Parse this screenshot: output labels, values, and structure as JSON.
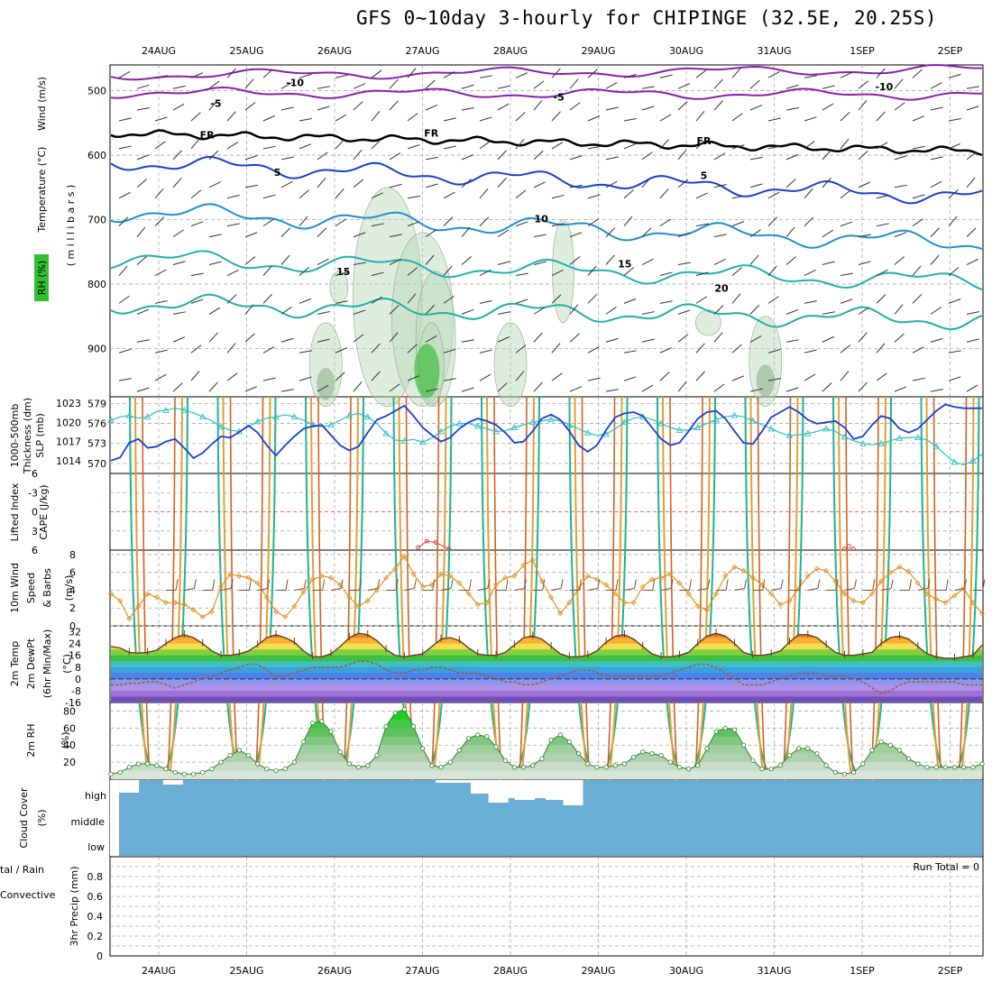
{
  "title": "GFS 0~10day 3-hourly for CHIPINGE (32.5E, 20.25S)",
  "dates": [
    "24AUG",
    "25AUG",
    "26AUG",
    "27AUG",
    "28AUG",
    "29AUG",
    "30AUG",
    "31AUG",
    "1SEP",
    "2SEP"
  ],
  "colors": {
    "wind": "#000000",
    "temperature": "#e06040",
    "rh": "#30c030",
    "thickness": "#30c0c0",
    "slp": "#1a3fd0",
    "lifted": "#e04040",
    "cape": "#d070d0",
    "wind10": "#e09020",
    "temp2m": "#c06030",
    "rh2m": "#30b030",
    "cloud": "#6aaed6",
    "precip": "#30c030",
    "convective": "#e03030"
  },
  "panel_labels": {
    "upper": {
      "wind": "Wind (m/s)",
      "temperature": "Temperature (°C)",
      "rh": "RH (%)",
      "mb": "( m i l l i b a r s )"
    },
    "thickness": {
      "a": "1000-500mb",
      "b": "Thickness (dm)",
      "slp": "SLP (mb)"
    },
    "stability": {
      "li": "Lifted Index",
      "cape": "CAPE (J/kg)"
    },
    "wind10": {
      "a": "10m Wind",
      "b": "Speed",
      "c": "& Barbs",
      "unit": "(m/s)"
    },
    "temp2m": {
      "a": "2m Temp",
      "b": "2m DewPt",
      "c": "(6hr Min/Max)",
      "unit": "(°C)"
    },
    "rh2m": {
      "a": "2m RH",
      "unit": "(%)"
    },
    "cloud": {
      "a": "Cloud Cover",
      "unit": "(%)",
      "high": "high",
      "middle": "middle",
      "low": "low"
    },
    "precip": {
      "a": "tal / Rain",
      "b": "Convective",
      "c": "3hr Precip (mm)",
      "run_total": "Run Total = 0"
    }
  },
  "chart_data": [
    {
      "type": "contour",
      "name": "upper-air",
      "ylabel": "( m i l l i b a r s )",
      "yticks": [
        500,
        600,
        700,
        800,
        900
      ],
      "ylim": [
        460,
        975
      ],
      "contour_labels": [
        {
          "text": "-10",
          "day": 1.55,
          "p": 486,
          "color": "#8a20b0"
        },
        {
          "text": "-10",
          "day": 8.25,
          "p": 492,
          "color": "#8a20b0"
        },
        {
          "text": "-5",
          "day": 0.65,
          "p": 518,
          "color": "#8a20b0"
        },
        {
          "text": "-5",
          "day": 4.55,
          "p": 508,
          "color": "#8a20b0"
        },
        {
          "text": "FR",
          "day": 0.55,
          "p": 567,
          "color": "#000000"
        },
        {
          "text": "FR",
          "day": 3.1,
          "p": 564,
          "color": "#000000"
        },
        {
          "text": "FR",
          "day": 6.2,
          "p": 576,
          "color": "#000000"
        },
        {
          "text": "5",
          "day": 1.35,
          "p": 625,
          "color": "#1a3fd0"
        },
        {
          "text": "5",
          "day": 6.2,
          "p": 630,
          "color": "#1a3fd0"
        },
        {
          "text": "10",
          "day": 4.35,
          "p": 697,
          "color": "#2090d0"
        },
        {
          "text": "15",
          "day": 2.1,
          "p": 779,
          "color": "#20b0b0"
        },
        {
          "text": "15",
          "day": 5.3,
          "p": 767,
          "color": "#20b0b0"
        },
        {
          "text": "20",
          "day": 6.4,
          "p": 805,
          "color": "#20b0b0"
        }
      ]
    },
    {
      "type": "line",
      "name": "thickness-slp",
      "yticks_left": [
        579,
        576,
        573,
        570
      ],
      "yticks_right": [
        1023,
        1020,
        1017,
        1014
      ],
      "series": [
        {
          "name": "1000-500mb Thickness",
          "values": [
            576.5,
            577,
            577.2,
            576.8,
            577,
            577.8,
            578,
            578.3,
            578,
            577.6,
            577,
            576.4,
            575.5,
            575,
            574.8,
            575.5,
            576.3,
            576.8,
            577,
            577.3,
            577,
            576.5,
            575.8,
            575.5,
            575.8,
            576.5,
            577.2,
            577.5,
            577,
            576,
            574.5,
            573.5,
            573.4,
            573.6,
            573.2,
            573.8,
            574.8,
            575.6,
            576,
            576,
            575.6,
            575.2,
            574.8,
            574.9,
            575.4,
            575.8,
            576.2,
            576.4,
            576.6,
            576.4,
            575.8,
            575.2,
            574.6,
            574.2,
            574.4,
            575.2,
            576.2,
            576.8,
            577,
            576.6,
            576,
            575.4,
            575,
            575,
            575.4,
            576,
            576.6,
            577,
            577.2,
            577,
            576.4,
            575.8,
            575.2,
            574.6,
            574.2,
            574.3,
            574.5,
            574.8,
            575.2,
            574.8,
            574,
            573.4,
            573,
            572.8,
            573,
            573.4,
            573.8,
            573.9,
            573.9,
            573.5,
            572.6,
            571.3,
            570.2,
            569.8,
            570.4,
            571.4
          ]
        },
        {
          "name": "SLP",
          "values": [
            1014,
            1014.5,
            1016.8,
            1017.4,
            1016,
            1016.2,
            1017,
            1017.4,
            1016,
            1014.4,
            1015.2,
            1016.6,
            1017.8,
            1017.6,
            1018.5,
            1019.5,
            1018.4,
            1016.4,
            1014.8,
            1016.4,
            1017.8,
            1019,
            1019.4,
            1019.6,
            1018,
            1016.4,
            1015.6,
            1016.2,
            1018.4,
            1020.4,
            1021,
            1021.8,
            1022.6,
            1021,
            1019.2,
            1018,
            1017,
            1017.6,
            1019,
            1020,
            1020.6,
            1020.2,
            1019.6,
            1018.4,
            1016.8,
            1017,
            1018.6,
            1020.6,
            1021.2,
            1020.4,
            1018.6,
            1016.4,
            1015.4,
            1016.4,
            1018.8,
            1020.8,
            1021.4,
            1021.6,
            1021,
            1019.2,
            1017.4,
            1016.4,
            1016.8,
            1018.6,
            1020.6,
            1021.6,
            1021.8,
            1020.6,
            1018.6,
            1016.8,
            1016.6,
            1018.6,
            1020.8,
            1021.6,
            1022.4,
            1021.6,
            1020.4,
            1019.8,
            1020,
            1020.2,
            1019.2,
            1017.4,
            1017.8,
            1019.6,
            1021,
            1020.6,
            1019,
            1018.4,
            1019,
            1020.4,
            1021.8,
            1022.8,
            1022.4,
            1022.2,
            1022.2,
            1022.2
          ]
        }
      ]
    },
    {
      "type": "line",
      "name": "lifted-index-cape",
      "yticks": [
        -6,
        -3,
        0,
        3,
        6
      ],
      "series": [
        {
          "name": "Lifted Index",
          "points": [
            [
              2.95,
              5.6
            ],
            [
              3.05,
              4.6
            ],
            [
              3.15,
              4.8
            ],
            [
              3.3,
              5.8
            ],
            [
              7.8,
              5.8
            ],
            [
              7.85,
              5.4
            ],
            [
              7.9,
              5.8
            ]
          ]
        }
      ]
    },
    {
      "type": "line",
      "name": "wind10m",
      "yticks": [
        0,
        2,
        4,
        6,
        8
      ],
      "ylim": [
        0,
        8.5
      ],
      "series": [
        {
          "name": "10m Wind Speed",
          "values": [
            3.6,
            2.8,
            0.8,
            2.2,
            3.6,
            3.2,
            2.6,
            2.6,
            2.4,
            1.8,
            1,
            1.6,
            4.4,
            5.8,
            5.6,
            5.4,
            4.8,
            3.2,
            1.6,
            1,
            2.2,
            3.8,
            5.2,
            5.6,
            5.4,
            4.6,
            3.2,
            2.2,
            2.8,
            4,
            5.4,
            6.4,
            7.8,
            5.8,
            4.4,
            4.6,
            5.8,
            5.6,
            4.8,
            3.6,
            2.4,
            2.6,
            4.6,
            5.4,
            5.6,
            6.8,
            7.4,
            5,
            3.2,
            1.4,
            2.6,
            4.2,
            5.6,
            5.2,
            4.6,
            3.6,
            2.6,
            2.6,
            4.4,
            5.2,
            5.4,
            5.8,
            4.8,
            3.6,
            2.2,
            1.8,
            3.6,
            5.6,
            6.6,
            6.2,
            5.4,
            4.6,
            3.6,
            2.4,
            2.8,
            4.2,
            5.6,
            6.4,
            6.2,
            5,
            3.6,
            2.8,
            2.6,
            3.6,
            5,
            6,
            6.6,
            6.1,
            4.8,
            3.6,
            3,
            2.6,
            3.4,
            4.2,
            2.6,
            1.4
          ]
        }
      ]
    },
    {
      "type": "line",
      "name": "temp2m",
      "yticks": [
        32,
        24,
        16,
        8,
        0,
        -8,
        -16
      ],
      "series": [
        {
          "name": "2m Temp",
          "values": [
            22,
            21,
            18,
            17.5,
            18,
            19.5,
            24,
            28,
            30,
            28,
            24,
            19,
            16,
            16,
            17,
            19,
            23,
            28,
            30,
            28,
            25,
            19,
            15,
            15,
            17,
            22,
            28,
            31,
            30,
            26,
            20,
            16,
            15,
            16,
            17,
            22,
            27,
            28,
            26,
            21,
            17,
            16,
            16,
            18,
            23,
            28,
            29,
            27,
            22,
            17,
            15,
            15,
            16,
            19,
            25,
            29,
            30,
            27,
            22,
            17,
            15,
            15,
            16,
            18,
            24,
            29,
            31,
            29,
            24,
            18,
            16,
            16,
            17,
            19,
            25,
            30,
            30,
            28,
            23,
            18,
            16,
            16,
            17,
            18,
            24,
            28,
            29,
            27,
            22,
            17,
            15,
            14,
            14,
            15,
            16,
            23
          ]
        },
        {
          "name": "2m DewPt",
          "values": [
            -4,
            -4,
            -3,
            -3,
            -2,
            -2,
            -4,
            -6,
            -4,
            -2,
            0,
            2,
            4,
            6,
            8,
            10,
            10,
            6,
            2,
            2,
            4,
            6,
            8,
            8,
            8,
            8,
            10,
            12,
            12,
            10,
            6,
            4,
            4,
            6,
            6,
            8,
            8,
            6,
            4,
            4,
            4,
            2,
            0,
            -2,
            -2,
            -4,
            -4,
            -2,
            0,
            2,
            4,
            6,
            6,
            4,
            2,
            2,
            2,
            2,
            2,
            2,
            2,
            4,
            6,
            8,
            10,
            10,
            8,
            4,
            0,
            -4,
            -4,
            -4,
            -2,
            0,
            2,
            4,
            4,
            4,
            2,
            2,
            2,
            0,
            -2,
            -6,
            -10,
            -8,
            -4,
            -2,
            -2,
            -2,
            -2,
            -2,
            -2,
            -4,
            -4,
            -4
          ]
        }
      ]
    },
    {
      "type": "area",
      "name": "rh2m",
      "yticks": [
        20,
        40,
        60,
        80
      ],
      "ylim": [
        0,
        90
      ],
      "series": [
        {
          "name": "2m RH",
          "values": [
            6,
            8,
            14,
            18,
            18,
            16,
            12,
            8,
            6,
            6,
            8,
            12,
            20,
            28,
            34,
            28,
            18,
            12,
            10,
            12,
            20,
            44,
            66,
            68,
            56,
            32,
            18,
            14,
            16,
            28,
            62,
            78,
            82,
            62,
            36,
            16,
            14,
            20,
            34,
            48,
            52,
            50,
            38,
            22,
            14,
            14,
            16,
            24,
            46,
            52,
            44,
            30,
            18,
            14,
            14,
            16,
            18,
            26,
            32,
            30,
            28,
            20,
            14,
            12,
            16,
            36,
            56,
            60,
            58,
            40,
            22,
            12,
            12,
            16,
            28,
            36,
            36,
            30,
            16,
            8,
            6,
            8,
            18,
            34,
            44,
            40,
            34,
            24,
            18,
            14,
            14,
            14,
            14,
            14,
            14,
            18
          ]
        }
      ]
    },
    {
      "type": "bar",
      "name": "cloud-cover",
      "categories": [
        "high",
        "middle",
        "low"
      ],
      "series": [
        {
          "name": "high cloud gaps",
          "points": [
            [
              0,
              0,
              14
            ],
            [
              0.5,
              0,
              5
            ],
            [
              3.6,
              0,
              3
            ],
            [
              3.8,
              0,
              3
            ],
            [
              4.0,
              0,
              15
            ],
            [
              4.2,
              0,
              25
            ],
            [
              4.35,
              0,
              20
            ],
            [
              4.5,
              0,
              22
            ],
            [
              4.7,
              0,
              20
            ],
            [
              4.85,
              0,
              22
            ],
            [
              5.05,
              0,
              28
            ]
          ]
        }
      ]
    },
    {
      "type": "bar",
      "name": "precip",
      "yticks": [
        0,
        0.2,
        0.4,
        0.6,
        0.8
      ],
      "ylim": [
        0,
        1
      ],
      "run_total": "Run Total = 0",
      "values": []
    }
  ]
}
